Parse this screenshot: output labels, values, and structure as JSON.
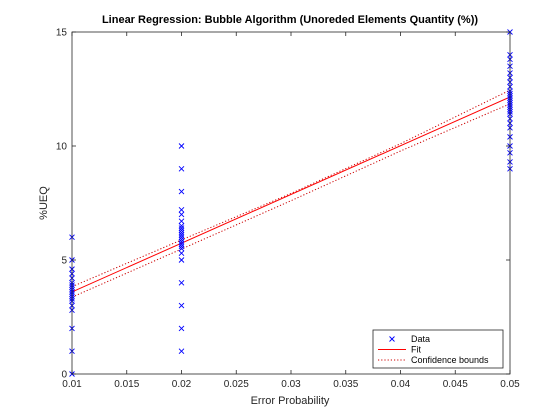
{
  "chart_data": {
    "type": "scatter",
    "title": "Linear Regression: Bubble Algorithm (Unoreded Elements Quantity (%))",
    "xlabel": "Error Probability",
    "ylabel": "%UEQ",
    "xlim": [
      0.01,
      0.05
    ],
    "ylim": [
      0,
      15
    ],
    "xticks": [
      0.01,
      0.015,
      0.02,
      0.025,
      0.03,
      0.035,
      0.04,
      0.045,
      0.05
    ],
    "xtick_labels": [
      "0.01",
      "0.015",
      "0.02",
      "0.025",
      "0.03",
      "0.035",
      "0.04",
      "0.045",
      "0.05"
    ],
    "yticks": [
      0,
      5,
      10,
      15
    ],
    "ytick_labels": [
      "0",
      "5",
      "10",
      "15"
    ],
    "grid": false,
    "legend_position": "bottom-right",
    "legend": [
      "Data",
      "Fit",
      "Confidence bounds"
    ],
    "colors": {
      "data": "#0000ff",
      "fit": "#ff0000",
      "bounds": "#cc0000"
    },
    "series": [
      {
        "name": "Data",
        "marker": "x",
        "points": [
          [
            0.01,
            0.0
          ],
          [
            0.01,
            1.0
          ],
          [
            0.01,
            2.0
          ],
          [
            0.01,
            2.8
          ],
          [
            0.01,
            3.0
          ],
          [
            0.01,
            3.2
          ],
          [
            0.01,
            3.3
          ],
          [
            0.01,
            3.4
          ],
          [
            0.01,
            3.5
          ],
          [
            0.01,
            3.6
          ],
          [
            0.01,
            3.7
          ],
          [
            0.01,
            3.8
          ],
          [
            0.01,
            3.9
          ],
          [
            0.01,
            4.0
          ],
          [
            0.01,
            4.2
          ],
          [
            0.01,
            4.4
          ],
          [
            0.01,
            4.6
          ],
          [
            0.01,
            5.0
          ],
          [
            0.01,
            6.0
          ],
          [
            0.02,
            1.0
          ],
          [
            0.02,
            2.0
          ],
          [
            0.02,
            3.0
          ],
          [
            0.02,
            4.0
          ],
          [
            0.02,
            5.0
          ],
          [
            0.02,
            5.3
          ],
          [
            0.02,
            5.5
          ],
          [
            0.02,
            5.6
          ],
          [
            0.02,
            5.7
          ],
          [
            0.02,
            5.8
          ],
          [
            0.02,
            5.9
          ],
          [
            0.02,
            6.0
          ],
          [
            0.02,
            6.1
          ],
          [
            0.02,
            6.2
          ],
          [
            0.02,
            6.3
          ],
          [
            0.02,
            6.4
          ],
          [
            0.02,
            6.5
          ],
          [
            0.02,
            6.7
          ],
          [
            0.02,
            7.0
          ],
          [
            0.02,
            7.2
          ],
          [
            0.02,
            8.0
          ],
          [
            0.02,
            9.0
          ],
          [
            0.02,
            10.0
          ],
          [
            0.05,
            9.0
          ],
          [
            0.05,
            9.3
          ],
          [
            0.05,
            9.7
          ],
          [
            0.05,
            10.0
          ],
          [
            0.05,
            10.4
          ],
          [
            0.05,
            10.8
          ],
          [
            0.05,
            11.0
          ],
          [
            0.05,
            11.2
          ],
          [
            0.05,
            11.4
          ],
          [
            0.05,
            11.5
          ],
          [
            0.05,
            11.6
          ],
          [
            0.05,
            11.7
          ],
          [
            0.05,
            11.8
          ],
          [
            0.05,
            11.9
          ],
          [
            0.05,
            12.0
          ],
          [
            0.05,
            12.1
          ],
          [
            0.05,
            12.2
          ],
          [
            0.05,
            12.3
          ],
          [
            0.05,
            12.4
          ],
          [
            0.05,
            12.6
          ],
          [
            0.05,
            12.8
          ],
          [
            0.05,
            13.0
          ],
          [
            0.05,
            13.2
          ],
          [
            0.05,
            13.5
          ],
          [
            0.05,
            13.8
          ],
          [
            0.05,
            14.0
          ],
          [
            0.05,
            15.0
          ]
        ]
      },
      {
        "name": "Fit",
        "style": "line",
        "points": [
          [
            0.01,
            3.6
          ],
          [
            0.05,
            12.15
          ]
        ]
      },
      {
        "name": "Confidence bounds",
        "style": "dotted",
        "upper": [
          [
            0.01,
            3.83
          ],
          [
            0.02,
            5.88
          ],
          [
            0.03,
            7.92
          ],
          [
            0.04,
            10.1
          ],
          [
            0.05,
            12.45
          ]
        ],
        "lower": [
          [
            0.01,
            3.37
          ],
          [
            0.02,
            5.48
          ],
          [
            0.03,
            7.6
          ],
          [
            0.04,
            9.78
          ],
          [
            0.05,
            11.85
          ]
        ]
      }
    ]
  }
}
